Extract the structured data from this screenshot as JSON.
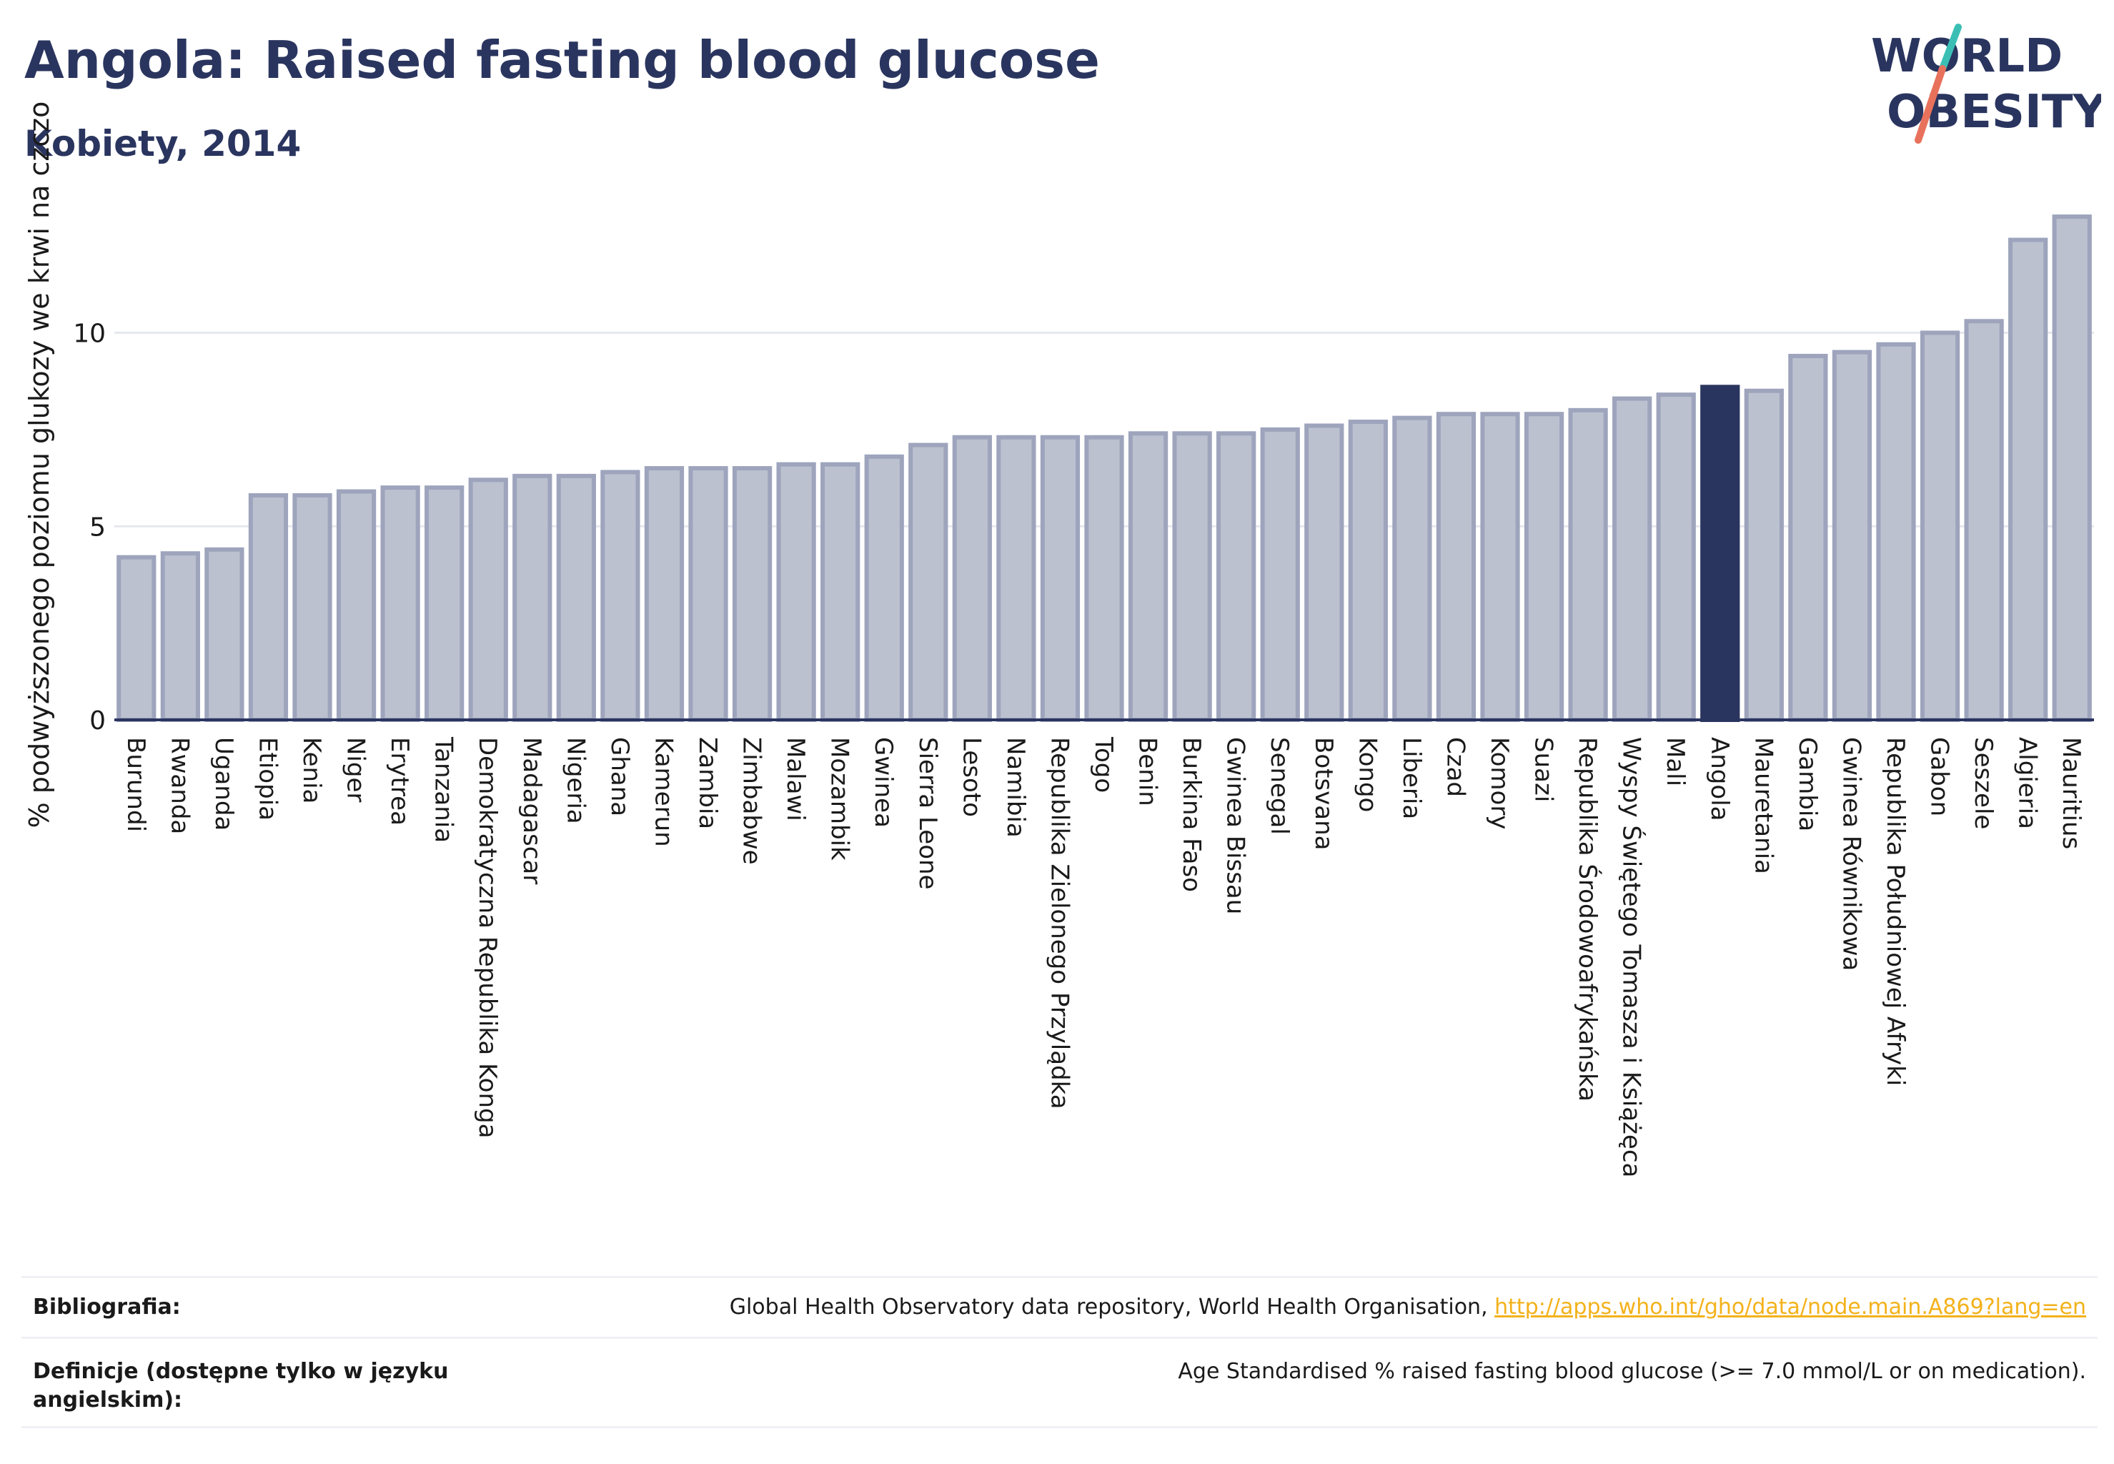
{
  "header": {
    "title": "Angola: Raised fasting blood glucose",
    "subtitle": "Kobiety, 2014",
    "logo_line1": "WORLD",
    "logo_line2": "OBESITY"
  },
  "colors": {
    "bar": "#bcc1d0",
    "bar_stroke": "#9da4bc",
    "highlight": "#2a355f",
    "grid": "#e6e8ee",
    "axis": "#2a355f",
    "link": "#f3b21b",
    "logo_teal": "#3bbfb5",
    "logo_coral": "#e8715b"
  },
  "chart_data": {
    "type": "bar",
    "title": "Angola: Raised fasting blood glucose",
    "subtitle": "Kobiety, 2014",
    "ylabel": "% podwyższonego poziomu glukozy we krwi na czczo",
    "xlabel": "",
    "ylim": [
      0,
      13.5
    ],
    "yticks": [
      0,
      5,
      10
    ],
    "grid": true,
    "highlight": "Angola",
    "categories": [
      "Burundi",
      "Rwanda",
      "Uganda",
      "Etiopia",
      "Kenia",
      "Niger",
      "Erytrea",
      "Tanzania",
      "Demokratyczna Republika Konga",
      "Madagascar",
      "Nigeria",
      "Ghana",
      "Kamerun",
      "Zambia",
      "Zimbabwe",
      "Malawi",
      "Mozambik",
      "Gwinea",
      "Sierra Leone",
      "Lesoto",
      "Namibia",
      "Republika Zielonego Przylądka",
      "Togo",
      "Benin",
      "Burkina Faso",
      "Gwinea Bissau",
      "Senegal",
      "Botsvana",
      "Kongo",
      "Liberia",
      "Czad",
      "Komory",
      "Suazi",
      "Republika Środowoafrykańska",
      "Wyspy Świętego Tomasza i Książęca",
      "Mali",
      "Angola",
      "Mauretania",
      "Gambia",
      "Gwinea Równikowa",
      "Republika Południowej Afryki",
      "Gabon",
      "Seszele",
      "Algieria",
      "Mauritius"
    ],
    "values": [
      4.2,
      4.3,
      4.4,
      5.8,
      5.8,
      5.9,
      6.0,
      6.0,
      6.2,
      6.3,
      6.3,
      6.4,
      6.5,
      6.5,
      6.5,
      6.6,
      6.6,
      6.8,
      7.1,
      7.3,
      7.3,
      7.3,
      7.3,
      7.4,
      7.4,
      7.4,
      7.5,
      7.6,
      7.7,
      7.8,
      7.9,
      7.9,
      7.9,
      8.0,
      8.3,
      8.4,
      8.6,
      8.5,
      9.4,
      9.5,
      9.7,
      10.0,
      10.3,
      12.4,
      13.0
    ]
  },
  "footer": {
    "bibliography_label": "Bibliografia:",
    "bibliography_text": "Global Health Observatory data repository, World Health Organisation, ",
    "bibliography_link": "http://apps.who.int/gho/data/node.main.A869?lang=en",
    "definitions_label": "Definicje (dostępne tylko w języku angielskim):",
    "definitions_text": "Age Standardised % raised fasting blood glucose (>= 7.0 mmol/L or on medication)."
  }
}
